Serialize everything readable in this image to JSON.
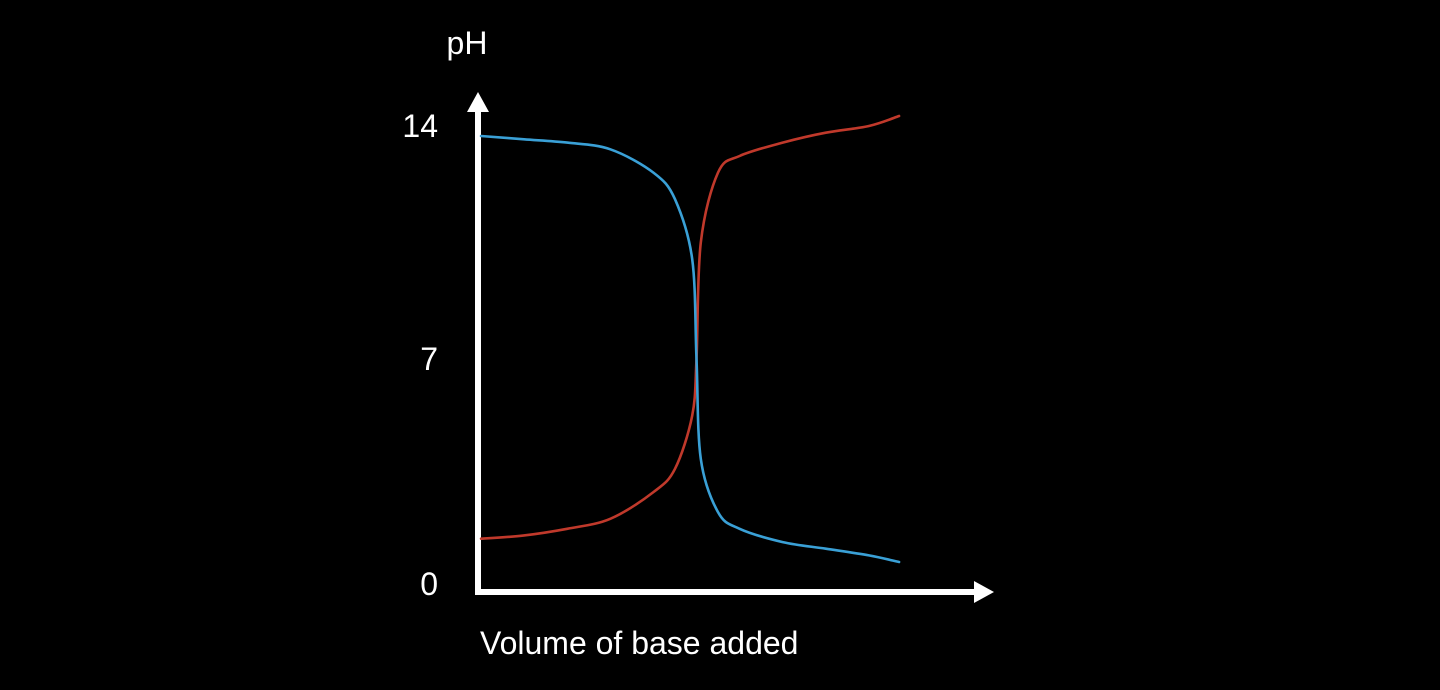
{
  "chart_data": {
    "type": "line",
    "title": "",
    "xlabel": "Volume of base added",
    "ylabel": "pH",
    "xlim": [
      0,
      1
    ],
    "ylim": [
      0,
      14
    ],
    "yticks": [
      {
        "value": 0,
        "label": "0"
      },
      {
        "value": 7,
        "label": "7"
      },
      {
        "value": 14,
        "label": "14"
      }
    ],
    "xticks": [],
    "grid": false,
    "legend": "none",
    "series": [
      {
        "color": "#c0392b",
        "x": [
          0.0,
          0.1,
          0.2,
          0.3,
          0.4,
          0.45,
          0.49,
          0.5,
          0.51,
          0.55,
          0.6,
          0.7,
          0.8,
          0.9,
          0.97
        ],
        "y": [
          1.6,
          1.7,
          1.9,
          2.2,
          3.0,
          3.7,
          5.3,
          7.0,
          10.5,
          12.6,
          13.1,
          13.5,
          13.8,
          14.0,
          14.3
        ]
      },
      {
        "color": "#3aa0d6",
        "x": [
          0.0,
          0.1,
          0.2,
          0.3,
          0.4,
          0.45,
          0.49,
          0.5,
          0.51,
          0.55,
          0.6,
          0.7,
          0.8,
          0.9,
          0.97
        ],
        "y": [
          13.7,
          13.6,
          13.5,
          13.3,
          12.6,
          11.8,
          10.0,
          7.0,
          4.0,
          2.4,
          1.9,
          1.5,
          1.3,
          1.1,
          0.9
        ]
      }
    ]
  }
}
